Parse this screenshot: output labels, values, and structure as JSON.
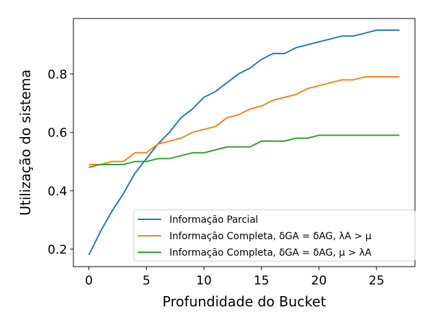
{
  "chart_data": {
    "type": "line",
    "xlabel": "Profundidade do Bucket",
    "ylabel": "Utilização do sistema",
    "xlim": [
      -1.35,
      28.35
    ],
    "ylim": [
      0.14,
      0.99
    ],
    "xticks": [
      0,
      5,
      10,
      15,
      20,
      25
    ],
    "xtick_labels": [
      "0",
      "5",
      "10",
      "15",
      "20",
      "25"
    ],
    "yticks": [
      0.2,
      0.4,
      0.6,
      0.8
    ],
    "ytick_labels": [
      "0.2",
      "0.4",
      "0.6",
      "0.8"
    ],
    "grid": false,
    "legend_position": "lower-right",
    "x": [
      0,
      1,
      2,
      3,
      4,
      5,
      6,
      7,
      8,
      9,
      10,
      11,
      12,
      13,
      14,
      15,
      16,
      17,
      18,
      19,
      20,
      21,
      22,
      23,
      24,
      25,
      26,
      27
    ],
    "series": [
      {
        "name": "Informação Parcial",
        "color": "#1f77b4",
        "values": [
          0.18,
          0.26,
          0.33,
          0.39,
          0.46,
          0.51,
          0.56,
          0.6,
          0.65,
          0.68,
          0.72,
          0.74,
          0.77,
          0.8,
          0.82,
          0.85,
          0.87,
          0.87,
          0.89,
          0.9,
          0.91,
          0.92,
          0.93,
          0.93,
          0.94,
          0.95,
          0.95,
          0.95
        ]
      },
      {
        "name": "Informação Completa, δGA = δAG, λA > μ",
        "color": "#ff7f0e",
        "values": [
          0.49,
          0.49,
          0.5,
          0.5,
          0.53,
          0.53,
          0.56,
          0.57,
          0.58,
          0.6,
          0.61,
          0.62,
          0.65,
          0.66,
          0.68,
          0.69,
          0.71,
          0.72,
          0.73,
          0.75,
          0.76,
          0.77,
          0.78,
          0.78,
          0.79,
          0.79,
          0.79,
          0.79
        ]
      },
      {
        "name": "Informação Completa, δGA = δAG, μ > λA",
        "color": "#2ca02c",
        "values": [
          0.48,
          0.49,
          0.49,
          0.49,
          0.5,
          0.5,
          0.51,
          0.51,
          0.52,
          0.53,
          0.53,
          0.54,
          0.55,
          0.55,
          0.55,
          0.57,
          0.57,
          0.57,
          0.58,
          0.58,
          0.59,
          0.59,
          0.59,
          0.59,
          0.59,
          0.59,
          0.59,
          0.59
        ]
      }
    ]
  }
}
